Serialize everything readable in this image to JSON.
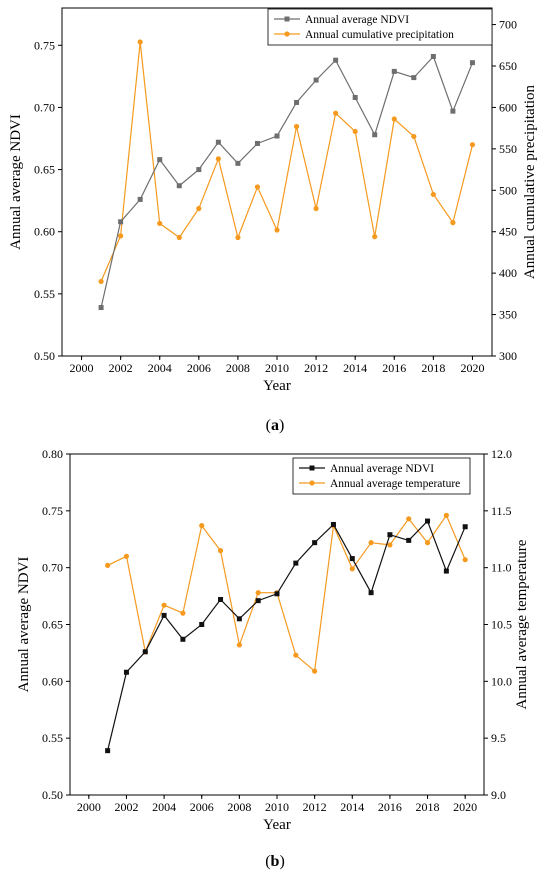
{
  "colors": {
    "ndvi_a": "#6e6e6e",
    "ndvi_b": "#111111",
    "orange": "#f59a1f"
  },
  "panels": [
    {
      "caption_prefix": "(",
      "caption_letter": "a",
      "caption_suffix": ")"
    },
    {
      "caption_prefix": "(",
      "caption_letter": "b",
      "caption_suffix": ")"
    }
  ],
  "chart_data": [
    {
      "type": "line",
      "xlabel": "Year",
      "ylabel_left": "Annual average NDVI",
      "ylabel_right": "Annual cumulative precipitation",
      "xlim": [
        1999,
        2021
      ],
      "xticks": [
        2000,
        2002,
        2004,
        2006,
        2008,
        2010,
        2012,
        2014,
        2016,
        2018,
        2020
      ],
      "ylim_left": [
        0.5,
        0.78
      ],
      "yticks_left": [
        "0.50",
        "0.55",
        "0.60",
        "0.65",
        "0.70",
        "0.75"
      ],
      "ylim_right": [
        300,
        720
      ],
      "yticks_right": [
        "300",
        "350",
        "400",
        "450",
        "500",
        "550",
        "600",
        "650",
        "700"
      ],
      "legend_position": "top-right",
      "x": [
        2001,
        2002,
        2003,
        2004,
        2005,
        2006,
        2007,
        2008,
        2009,
        2010,
        2011,
        2012,
        2013,
        2014,
        2015,
        2016,
        2017,
        2018,
        2019,
        2020
      ],
      "series": [
        {
          "name": "Annual average NDVI",
          "axis": "left",
          "marker": "square",
          "values": [
            0.539,
            0.608,
            0.626,
            0.658,
            0.637,
            0.65,
            0.672,
            0.655,
            0.671,
            0.677,
            0.704,
            0.722,
            0.738,
            0.708,
            0.678,
            0.729,
            0.724,
            0.741,
            0.697,
            0.736
          ]
        },
        {
          "name": "Annual cumulative precipitation",
          "axis": "right",
          "marker": "circle",
          "values": [
            390,
            445,
            679,
            460,
            443,
            478,
            538,
            443,
            504,
            452,
            577,
            478,
            593,
            571,
            444,
            586,
            565,
            495,
            461,
            555
          ]
        }
      ]
    },
    {
      "type": "line",
      "xlabel": "Year",
      "ylabel_left": "Annual average NDVI",
      "ylabel_right": "Annual average temperature",
      "xlim": [
        1999,
        2021
      ],
      "xticks": [
        2000,
        2002,
        2004,
        2006,
        2008,
        2010,
        2012,
        2014,
        2016,
        2018,
        2020
      ],
      "ylim_left": [
        0.5,
        0.8
      ],
      "yticks_left": [
        "0.50",
        "0.55",
        "0.60",
        "0.65",
        "0.70",
        "0.75",
        "0.80"
      ],
      "ylim_right": [
        9.0,
        12.0
      ],
      "yticks_right": [
        "9.0",
        "9.5",
        "10.0",
        "10.5",
        "11.0",
        "11.5",
        "12.0"
      ],
      "legend_position": "top-right",
      "x": [
        2001,
        2002,
        2003,
        2004,
        2005,
        2006,
        2007,
        2008,
        2009,
        2010,
        2011,
        2012,
        2013,
        2014,
        2015,
        2016,
        2017,
        2018,
        2019,
        2020
      ],
      "series": [
        {
          "name": "Annual average NDVI",
          "axis": "left",
          "marker": "square",
          "values": [
            0.539,
            0.608,
            0.626,
            0.658,
            0.637,
            0.65,
            0.672,
            0.655,
            0.671,
            0.677,
            0.704,
            0.722,
            0.738,
            0.708,
            0.678,
            0.729,
            0.724,
            0.741,
            0.697,
            0.736
          ]
        },
        {
          "name": "Annual average temperature",
          "axis": "right",
          "marker": "circle",
          "values": [
            11.02,
            11.1,
            10.26,
            10.67,
            10.6,
            11.37,
            11.15,
            10.32,
            10.78,
            10.78,
            10.23,
            10.09,
            11.37,
            10.99,
            11.22,
            11.2,
            11.43,
            11.22,
            11.46,
            11.07
          ]
        }
      ]
    }
  ]
}
